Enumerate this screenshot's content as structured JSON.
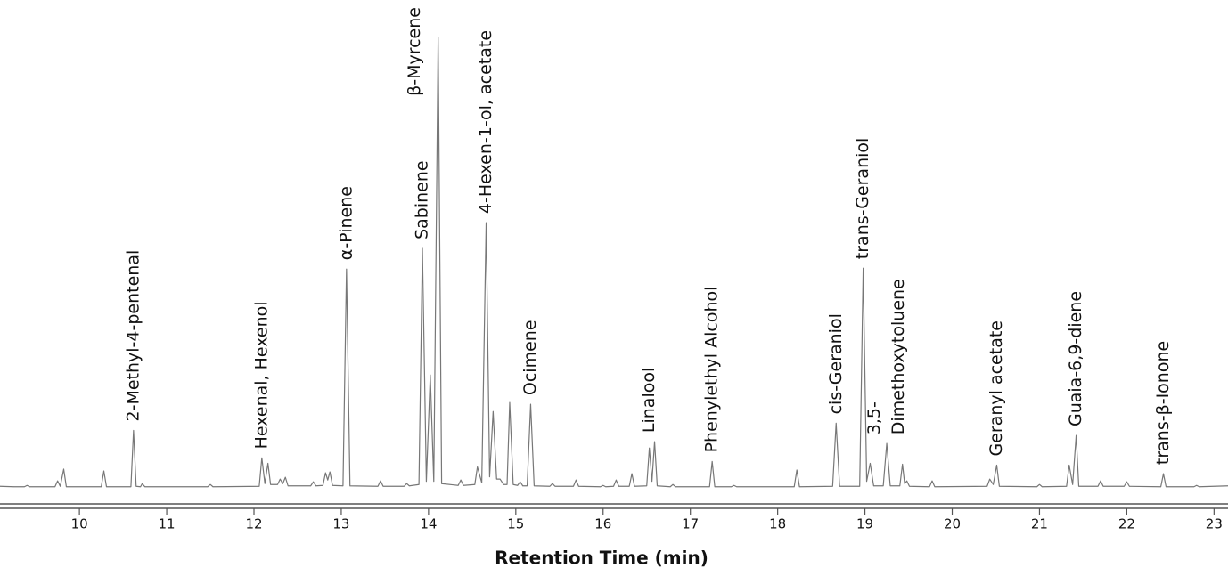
{
  "chart_data": {
    "type": "line",
    "x_label": "Retention Time (min)",
    "xlim": [
      9.09,
      23.16
    ],
    "ylim": [
      -3.5,
      100
    ],
    "xticks": [
      10,
      11,
      12,
      13,
      14,
      15,
      16,
      17,
      18,
      19,
      20,
      21,
      22,
      23
    ],
    "grid": false,
    "series": [
      {
        "color": "#777777",
        "x": [
          9.09,
          9.25,
          9.37,
          9.4,
          9.43,
          9.72,
          9.75,
          9.78,
          9.82,
          9.85,
          10.25,
          10.28,
          10.31,
          10.59,
          10.62,
          10.65,
          10.7,
          10.72,
          10.75,
          11.47,
          11.5,
          11.53,
          12.06,
          12.09,
          12.125,
          12.16,
          12.19,
          12.27,
          12.3,
          12.33,
          12.36,
          12.39,
          12.65,
          12.68,
          12.71,
          12.79,
          12.82,
          12.845,
          12.87,
          12.9,
          13.02,
          13.06,
          13.1,
          13.42,
          13.45,
          13.48,
          13.72,
          13.75,
          13.78,
          13.89,
          13.93,
          13.975,
          14.02,
          14.06,
          14.11,
          14.15,
          14.34,
          14.37,
          14.4,
          14.53,
          14.56,
          14.61,
          14.66,
          14.7,
          14.74,
          14.78,
          14.82,
          14.86,
          14.9,
          14.93,
          14.97,
          15.02,
          15.05,
          15.08,
          15.13,
          15.17,
          15.21,
          15.39,
          15.42,
          15.45,
          15.66,
          15.69,
          15.72,
          15.97,
          16.0,
          16.03,
          16.12,
          16.15,
          16.18,
          16.3,
          16.33,
          16.36,
          16.5,
          16.53,
          16.56,
          16.59,
          16.62,
          16.77,
          16.8,
          16.83,
          17.22,
          17.25,
          17.28,
          17.47,
          17.5,
          17.53,
          18.19,
          18.22,
          18.25,
          18.63,
          18.67,
          18.71,
          18.94,
          18.98,
          19.02,
          19.06,
          19.1,
          19.21,
          19.25,
          19.29,
          19.4,
          19.43,
          19.455,
          19.48,
          19.51,
          19.74,
          19.77,
          19.8,
          20.4,
          20.43,
          20.47,
          20.51,
          20.54,
          20.97,
          21.0,
          21.03,
          21.31,
          21.34,
          21.38,
          21.42,
          21.45,
          21.67,
          21.7,
          21.73,
          21.97,
          22.0,
          22.03,
          22.39,
          22.42,
          22.45,
          22.77,
          22.8,
          22.83,
          23.16
        ],
        "values": [
          0.4,
          0.3,
          0.3,
          0.6,
          0.3,
          0.3,
          1.6,
          0.4,
          4.2,
          0.3,
          0.3,
          3.8,
          0.3,
          0.3,
          12.8,
          0.4,
          0.3,
          1.0,
          0.3,
          0.3,
          0.8,
          0.3,
          0.4,
          6.7,
          1.0,
          5.5,
          0.8,
          0.8,
          2.0,
          1.0,
          2.4,
          0.5,
          0.5,
          1.4,
          0.5,
          0.6,
          3.4,
          1.8,
          3.6,
          0.6,
          0.5,
          48.6,
          0.5,
          0.4,
          1.6,
          0.4,
          0.4,
          1.0,
          0.5,
          0.8,
          53.2,
          1.5,
          25.1,
          1.5,
          100,
          1.0,
          0.6,
          1.8,
          0.6,
          0.8,
          4.7,
          1.2,
          58.9,
          2.5,
          17,
          2.0,
          2.0,
          0.8,
          0.8,
          19,
          0.8,
          0.6,
          1.4,
          0.5,
          0.5,
          18.6,
          0.5,
          0.4,
          1.0,
          0.4,
          0.4,
          1.8,
          0.4,
          0.3,
          0.6,
          0.3,
          0.4,
          1.8,
          0.4,
          0.4,
          3.2,
          0.4,
          0.5,
          8.9,
          1.5,
          10.3,
          0.5,
          0.3,
          0.8,
          0.3,
          0.3,
          5.9,
          0.3,
          0.3,
          0.6,
          0.3,
          0.3,
          4.0,
          0.3,
          0.4,
          14.4,
          0.4,
          0.4,
          48.8,
          1.5,
          5.5,
          0.5,
          0.5,
          9.9,
          0.5,
          0.5,
          5.3,
          1.0,
          1.6,
          0.4,
          0.3,
          1.6,
          0.3,
          0.4,
          2.0,
          0.8,
          5.1,
          0.4,
          0.3,
          0.8,
          0.3,
          0.4,
          5.1,
          0.8,
          11.7,
          0.4,
          0.4,
          1.6,
          0.4,
          0.4,
          1.4,
          0.4,
          0.3,
          3.2,
          0.3,
          0.3,
          0.6,
          0.3,
          0.5
        ]
      }
    ],
    "annotations": [
      {
        "lines": [
          "2-Methyl-4-pentenal"
        ],
        "x": 10.62,
        "y": 12.8
      },
      {
        "lines": [
          "Hexenal, Hexenol"
        ],
        "x": 12.09,
        "y": 6.7
      },
      {
        "lines": [
          "α-Pinene"
        ],
        "x": 13.06,
        "y": 48.6
      },
      {
        "lines": [
          "Sabinene"
        ],
        "x": 13.93,
        "y": 53.2
      },
      {
        "lines": [
          "β-Myrcene"
        ],
        "x": 14.11,
        "y": 100
      },
      {
        "lines": [
          "4-Hexen-1-ol, acetate"
        ],
        "x": 14.66,
        "y": 58.9
      },
      {
        "lines": [
          "Ocimene"
        ],
        "x": 15.17,
        "y": 18.6
      },
      {
        "lines": [
          "Linalool"
        ],
        "x": 16.53,
        "y": 10.3
      },
      {
        "lines": [
          "Phenylethyl Alcohol"
        ],
        "x": 17.25,
        "y": 5.9
      },
      {
        "lines": [
          "cis-Geraniol"
        ],
        "x": 18.67,
        "y": 14.4
      },
      {
        "lines": [
          "trans-Geraniol"
        ],
        "x": 18.98,
        "y": 48.8
      },
      {
        "lines": [
          "3,5-",
          "Dimethoxytoluene"
        ],
        "x": 19.25,
        "y": 9.9
      },
      {
        "lines": [
          "Geranyl acetate"
        ],
        "x": 20.51,
        "y": 5.1
      },
      {
        "lines": [
          "Guaia-6,9-diene"
        ],
        "x": 21.42,
        "y": 11.7
      },
      {
        "lines": [
          "trans-β-Ionone"
        ],
        "x": 22.42,
        "y": 3.2
      }
    ]
  }
}
